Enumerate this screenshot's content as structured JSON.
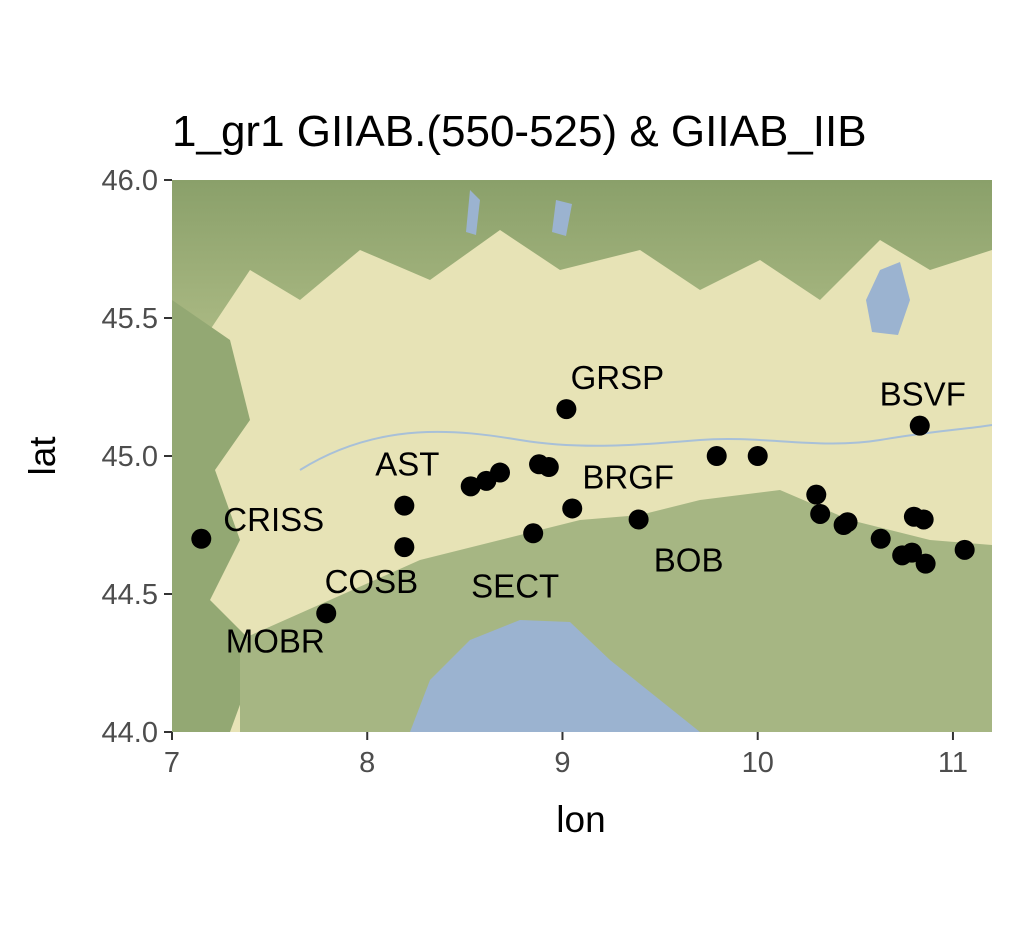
{
  "chart_data": {
    "type": "scatter",
    "title": "1_gr1 GIIAB.(550-525) & GIIAB_IIB",
    "xlabel": "lon",
    "ylabel": "lat",
    "xlim": [
      7,
      11.2
    ],
    "ylim": [
      44.0,
      46.0
    ],
    "x_ticks": [
      "7",
      "8",
      "9",
      "10",
      "11"
    ],
    "y_ticks": [
      "44.0",
      "44.5",
      "45.0",
      "45.5",
      "46.0"
    ],
    "x_tick_values": [
      7,
      8,
      9,
      10,
      11
    ],
    "y_tick_values": [
      44.0,
      44.5,
      45.0,
      45.5,
      46.0
    ],
    "background": "terrain basemap",
    "point_color": "#000000",
    "points": [
      {
        "lon": 7.15,
        "lat": 44.7,
        "label": "CRISS"
      },
      {
        "lon": 8.19,
        "lat": 44.82,
        "label": "AST"
      },
      {
        "lon": 8.19,
        "lat": 44.67,
        "label": "COSB"
      },
      {
        "lon": 7.79,
        "lat": 44.43,
        "label": "MOBR"
      },
      {
        "lon": 9.02,
        "lat": 45.17,
        "label": "GRSP"
      },
      {
        "lon": 9.05,
        "lat": 44.81,
        "label": "BRGF"
      },
      {
        "lon": 8.85,
        "lat": 44.72,
        "label": "SECT"
      },
      {
        "lon": 9.39,
        "lat": 44.77,
        "label": "BOB"
      },
      {
        "lon": 10.83,
        "lat": 45.11,
        "label": "BSVF"
      },
      {
        "lon": 8.53,
        "lat": 44.89,
        "label": ""
      },
      {
        "lon": 8.61,
        "lat": 44.91,
        "label": ""
      },
      {
        "lon": 8.68,
        "lat": 44.94,
        "label": ""
      },
      {
        "lon": 8.88,
        "lat": 44.97,
        "label": ""
      },
      {
        "lon": 8.93,
        "lat": 44.96,
        "label": ""
      },
      {
        "lon": 9.79,
        "lat": 45.0,
        "label": ""
      },
      {
        "lon": 10.0,
        "lat": 45.0,
        "label": ""
      },
      {
        "lon": 10.3,
        "lat": 44.86,
        "label": ""
      },
      {
        "lon": 10.32,
        "lat": 44.79,
        "label": ""
      },
      {
        "lon": 10.44,
        "lat": 44.75,
        "label": ""
      },
      {
        "lon": 10.46,
        "lat": 44.76,
        "label": ""
      },
      {
        "lon": 10.63,
        "lat": 44.7,
        "label": ""
      },
      {
        "lon": 10.74,
        "lat": 44.64,
        "label": ""
      },
      {
        "lon": 10.79,
        "lat": 44.65,
        "label": ""
      },
      {
        "lon": 10.8,
        "lat": 44.78,
        "label": ""
      },
      {
        "lon": 10.85,
        "lat": 44.77,
        "label": ""
      },
      {
        "lon": 10.86,
        "lat": 44.61,
        "label": ""
      },
      {
        "lon": 11.06,
        "lat": 44.66,
        "label": ""
      }
    ]
  }
}
